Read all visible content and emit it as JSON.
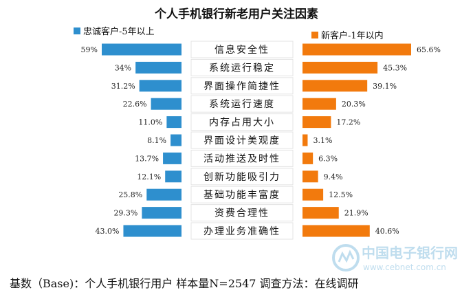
{
  "chart_data": {
    "type": "bar",
    "title": "个人手机银行新老用户关注因素",
    "categories": [
      "信息安全性",
      "系统运行稳定",
      "界面操作简捷性",
      "系统运行速度",
      "内存占用大小",
      "界面设计美观度",
      "活动推送及时性",
      "创新功能吸引力",
      "基础功能丰富度",
      "资费合理性",
      "办理业务准确性"
    ],
    "series": [
      {
        "name": "忠诚客户-5年以上",
        "values": [
          59.0,
          34.0,
          31.2,
          22.6,
          11.0,
          8.1,
          13.7,
          12.1,
          25.8,
          29.3,
          43.0
        ],
        "labels": [
          "59%",
          "34%",
          "31.2%",
          "22.6%",
          "11.0%",
          "8.1%",
          "13.7%",
          "12.1%",
          "25.8%",
          "29.3%",
          "43.0%"
        ],
        "color": "#2e8fce",
        "side": "left"
      },
      {
        "name": "新客户-1年以内",
        "values": [
          65.6,
          45.3,
          39.1,
          20.3,
          17.2,
          3.1,
          6.3,
          9.4,
          12.5,
          21.9,
          40.6
        ],
        "labels": [
          "65.6%",
          "45.3%",
          "39.1%",
          "20.3%",
          "17.2%",
          "3.1%",
          "6.3%",
          "9.4%",
          "12.5%",
          "21.9%",
          "40.6%"
        ],
        "color": "#f27a0d",
        "side": "right"
      }
    ],
    "legend_placement": "top",
    "grid": false
  },
  "footer": {
    "text": "基数（Base)：个人手机银行用户   样本量N=2547   调查方法：在线调研"
  },
  "watermark": {
    "name": "中国电子银行网",
    "url": "www.cebnet.com.cn"
  }
}
